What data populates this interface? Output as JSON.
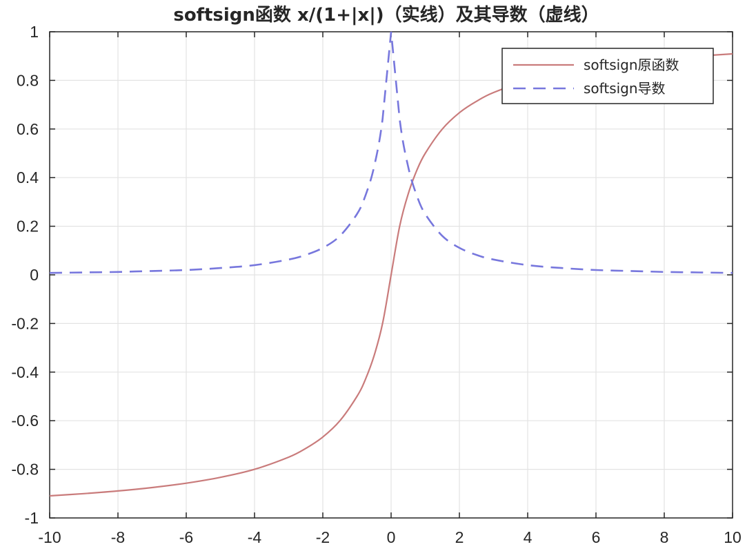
{
  "chart_data": {
    "type": "line",
    "title": "softsign函数 x/(1+|x|)（实线）及其导数（虚线）",
    "xlabel": "",
    "ylabel": "",
    "xlim": [
      -10,
      10
    ],
    "ylim": [
      -1,
      1
    ],
    "xticks": [
      -10,
      -8,
      -6,
      -4,
      -2,
      0,
      2,
      4,
      6,
      8,
      10
    ],
    "yticks": [
      -1,
      -0.8,
      -0.6,
      -0.4,
      -0.2,
      0,
      0.2,
      0.4,
      0.6,
      0.8,
      1
    ],
    "xtick_labels": [
      "-10",
      "-8",
      "-6",
      "-4",
      "-2",
      "0",
      "2",
      "4",
      "6",
      "8",
      "10"
    ],
    "ytick_labels": [
      "-1",
      "-0.8",
      "-0.6",
      "-0.4",
      "-0.2",
      "0",
      "0.2",
      "0.4",
      "0.6",
      "0.8",
      "1"
    ],
    "grid": true,
    "legend_position": "top-right",
    "series": [
      {
        "name": "softsign原函数",
        "style": "solid",
        "color": "#c97b7b",
        "x": [
          -10,
          -9,
          -8,
          -7,
          -6,
          -5,
          -4,
          -3,
          -2.5,
          -2,
          -1.5,
          -1,
          -0.75,
          -0.5,
          -0.25,
          0,
          0.25,
          0.5,
          0.75,
          1,
          1.5,
          2,
          2.5,
          3,
          4,
          5,
          6,
          7,
          8,
          9,
          10
        ],
        "y": [
          -0.909,
          -0.9,
          -0.889,
          -0.875,
          -0.857,
          -0.833,
          -0.8,
          -0.75,
          -0.714,
          -0.667,
          -0.6,
          -0.5,
          -0.429,
          -0.333,
          -0.2,
          0,
          0.2,
          0.333,
          0.429,
          0.5,
          0.6,
          0.667,
          0.714,
          0.75,
          0.8,
          0.833,
          0.857,
          0.875,
          0.889,
          0.9,
          0.909
        ]
      },
      {
        "name": "softsign导数",
        "style": "dashed",
        "color": "#7777dd",
        "x": [
          -10,
          -9,
          -8,
          -7,
          -6,
          -5,
          -4,
          -3,
          -2.5,
          -2,
          -1.5,
          -1,
          -0.75,
          -0.5,
          -0.25,
          0,
          0.25,
          0.5,
          0.75,
          1,
          1.5,
          2,
          2.5,
          3,
          4,
          5,
          6,
          7,
          8,
          9,
          10
        ],
        "y": [
          0.008,
          0.01,
          0.012,
          0.016,
          0.02,
          0.028,
          0.04,
          0.063,
          0.082,
          0.111,
          0.16,
          0.25,
          0.327,
          0.444,
          0.64,
          1,
          0.64,
          0.444,
          0.327,
          0.25,
          0.16,
          0.111,
          0.082,
          0.063,
          0.04,
          0.028,
          0.02,
          0.016,
          0.012,
          0.01,
          0.008
        ]
      }
    ]
  },
  "colors": {
    "axes": "#262626",
    "grid": "#e3e3e3",
    "original_curve": "#c97b7b",
    "derivative_curve": "#7777dd"
  }
}
